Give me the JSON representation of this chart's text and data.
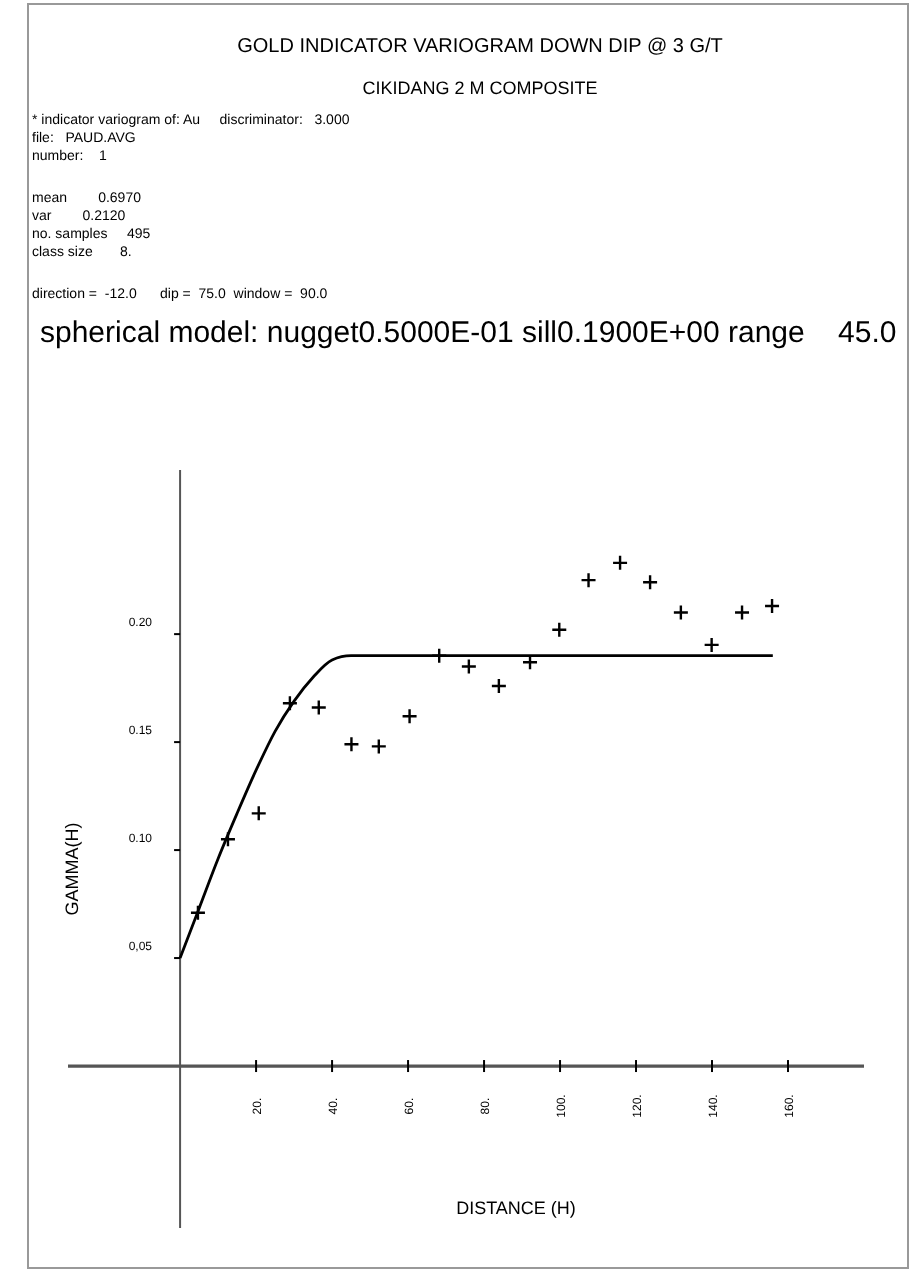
{
  "chart_data": {
    "type": "scatter",
    "title": "GOLD INDICATOR VARIOGRAM DOWN DIP @ 3 G/T",
    "subtitle": "CIKIDANG 2 M COMPOSITE",
    "xlabel": "DISTANCE (H)",
    "ylabel": "GAMMA(H)",
    "annotations": [
      "* indicator variogram of: Au     discriminator:   3.000",
      "file:   PAUD.AVG",
      "number:    1",
      "mean        0.6970",
      "var        0.2120",
      "no. samples     495",
      "class size       8.",
      "direction =  -12.0      dip =  75.0  window =  90.0",
      "spherical model: nugget0.5000E-01 sill0.1900E+00 range    45.0"
    ],
    "series": [
      {
        "color": "#000000",
        "marker": "cross",
        "x": [
          4.7,
          12.6,
          20.7,
          28.9,
          36.5,
          45.1,
          52.3,
          60.4,
          68.2,
          76.0,
          83.9,
          92.1,
          99.8,
          107.5,
          115.8,
          123.7,
          131.8,
          139.9,
          147.9,
          155.8
        ],
        "values": [
          0.071,
          0.105,
          0.117,
          0.168,
          0.166,
          0.149,
          0.148,
          0.162,
          0.19,
          0.185,
          0.176,
          0.187,
          0.202,
          0.225,
          0.233,
          0.224,
          0.21,
          0.195,
          0.21,
          0.213
        ]
      },
      {
        "type": "line",
        "color": "#000000",
        "marker": "none",
        "line_style": "solid",
        "x": [
          0,
          5,
          10,
          15,
          20,
          25,
          30,
          35,
          40,
          45,
          156
        ],
        "values": [
          0.05,
          0.073,
          0.096,
          0.117,
          0.137,
          0.155,
          0.169,
          0.18,
          0.188,
          0.19,
          0.19
        ]
      }
    ],
    "xlim": [
      -29.5,
      180
    ],
    "ylim": [
      -0.075,
      0.276
    ],
    "xticks": [
      {
        "value": 20,
        "label": "20."
      },
      {
        "value": 40,
        "label": "40."
      },
      {
        "value": 60,
        "label": "60."
      },
      {
        "value": 80,
        "label": "80."
      },
      {
        "value": 100,
        "label": "100."
      },
      {
        "value": 120,
        "label": "120."
      },
      {
        "value": 140,
        "label": "140."
      },
      {
        "value": 160,
        "label": "160."
      }
    ],
    "yticks": [
      {
        "value": 0.05,
        "label": "0,05"
      },
      {
        "value": 0.1,
        "label": "0.10"
      },
      {
        "value": 0.15,
        "label": "0.15"
      },
      {
        "value": 0.2,
        "label": "0.20"
      }
    ],
    "grid": false
  }
}
